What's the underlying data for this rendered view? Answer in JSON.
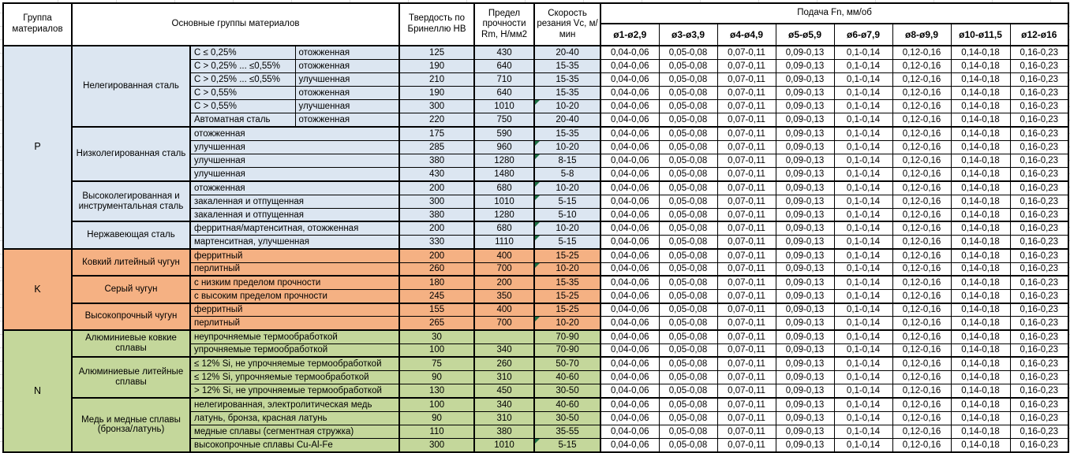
{
  "header": {
    "col_group": "Группа материалов",
    "col_main": "Основные группы материалов",
    "col_hb": "Твердость по Бринеллю НВ",
    "col_rm": "Предел прочности Rm, Н/мм2",
    "col_vc": "Скорость резания Vc, м/мин",
    "feed_title": "Подача Fn, мм/об",
    "feed_cols": [
      "ø1-ø2,9",
      "ø3-ø3,9",
      "ø4-ø4,9",
      "ø5-ø5,9",
      "ø6-ø7,9",
      "ø8-ø9,9",
      "ø10-ø11,5",
      "ø12-ø16"
    ]
  },
  "feed_values": [
    "0,04-0,06",
    "0,05-0,08",
    "0,07-0,11",
    "0,09-0,13",
    "0,1-0,14",
    "0,12-0,16",
    "0,14-0,18",
    "0,16-0,23"
  ],
  "colors": {
    "section_P": "#dce6f1",
    "section_K": "#f5b183",
    "section_N": "#c4d79b",
    "feed_cell_bg": "#ffffff",
    "border": "#000000",
    "note_triangle": "#1e7145"
  },
  "sections": [
    {
      "code": "P",
      "groups": [
        {
          "name": "Нелегированная сталь",
          "rows": [
            {
              "cond": "C ≤ 0,25%",
              "state": "отожженная",
              "hb": "125",
              "rm": "430",
              "vc": "20-40",
              "note": false
            },
            {
              "cond": "C > 0,25% ... ≤0,55%",
              "state": "отожженная",
              "hb": "190",
              "rm": "640",
              "vc": "15-35",
              "note": false
            },
            {
              "cond": "C > 0,25% ... ≤0,55%",
              "state": "улучшенная",
              "hb": "210",
              "rm": "710",
              "vc": "15-35",
              "note": false
            },
            {
              "cond": "C > 0,55%",
              "state": "отожженная",
              "hb": "190",
              "rm": "640",
              "vc": "15-35",
              "note": false
            },
            {
              "cond": "C > 0,55%",
              "state": "улучшенная",
              "hb": "300",
              "rm": "1010",
              "vc": "10-20",
              "note": true
            },
            {
              "cond": "Автоматная сталь",
              "state": "отожженная",
              "hb": "220",
              "rm": "750",
              "vc": "20-40",
              "note": false
            }
          ]
        },
        {
          "name": "Низколегированная сталь",
          "rows": [
            {
              "cond": "отожженная",
              "hb": "175",
              "rm": "590",
              "vc": "15-35",
              "note": false
            },
            {
              "cond": "улучшенная",
              "hb": "285",
              "rm": "960",
              "vc": "10-20",
              "note": true
            },
            {
              "cond": "улучшенная",
              "hb": "380",
              "rm": "1280",
              "vc": "8-15",
              "note": true
            },
            {
              "cond": "улучшенная",
              "hb": "430",
              "rm": "1480",
              "vc": "5-8",
              "note": false
            }
          ]
        },
        {
          "name": "Высоколегированная и инструментальная сталь",
          "rows": [
            {
              "cond": "отожженная",
              "hb": "200",
              "rm": "680",
              "vc": "10-20",
              "note": true
            },
            {
              "cond": "закаленная и отпущенная",
              "hb": "300",
              "rm": "1010",
              "vc": "5-15",
              "note": true
            },
            {
              "cond": "закаленная и отпущенная",
              "hb": "380",
              "rm": "1280",
              "vc": "5-10",
              "note": false
            }
          ]
        },
        {
          "name": "Нержавеющая сталь",
          "rows": [
            {
              "cond": "ферритная/мартенситная, отожженная",
              "hb": "200",
              "rm": "680",
              "vc": "10-20",
              "note": true
            },
            {
              "cond": "мартенситная, улучшенная",
              "hb": "330",
              "rm": "1110",
              "vc": "5-15",
              "note": true
            }
          ]
        }
      ]
    },
    {
      "code": "K",
      "groups": [
        {
          "name": "Ковкий литейный чугун",
          "rows": [
            {
              "cond": "ферритный",
              "hb": "200",
              "rm": "400",
              "vc": "15-25",
              "note": false
            },
            {
              "cond": "перлитный",
              "hb": "260",
              "rm": "700",
              "vc": "10-20",
              "note": true
            }
          ]
        },
        {
          "name": "Серый чугун",
          "rows": [
            {
              "cond": "с низким пределом прочности",
              "hb": "180",
              "rm": "200",
              "vc": "15-35",
              "note": false
            },
            {
              "cond": "с высоким пределом прочности",
              "hb": "245",
              "rm": "350",
              "vc": "15-25",
              "note": false
            }
          ]
        },
        {
          "name": "Высокопрочный чугун",
          "rows": [
            {
              "cond": "ферритный",
              "hb": "155",
              "rm": "400",
              "vc": "15-25",
              "note": false
            },
            {
              "cond": "перлитный",
              "hb": "265",
              "rm": "700",
              "vc": "10-20",
              "note": true
            }
          ]
        }
      ]
    },
    {
      "code": "N",
      "groups": [
        {
          "name": "Алюминиевые ковкие сплавы",
          "rows": [
            {
              "cond": "неупрочняемые термообработкой",
              "hb": "30",
              "rm": "",
              "vc": "70-90",
              "note": false
            },
            {
              "cond": "упрочняемые термообработкой",
              "hb": "100",
              "rm": "340",
              "vc": "70-90",
              "note": false
            }
          ]
        },
        {
          "name": "Алюминиевые литейные сплавы",
          "rows": [
            {
              "cond": "≤ 12% Si, не упрочняемые термообработкой",
              "hb": "75",
              "rm": "260",
              "vc": "50-70",
              "note": false
            },
            {
              "cond": "≤ 12% Si, упрочняемые термообработкой",
              "hb": "90",
              "rm": "310",
              "vc": "40-60",
              "note": false
            },
            {
              "cond": "> 12% Si, не упрочняемые термообработкой",
              "hb": "130",
              "rm": "450",
              "vc": "30-50",
              "note": false
            }
          ]
        },
        {
          "name": "Медь и медные сплавы (бронза/латунь)",
          "rows": [
            {
              "cond": "нелегированная, электролитическая медь",
              "hb": "100",
              "rm": "340",
              "vc": "40-60",
              "note": false
            },
            {
              "cond": "латунь, бронза, красная латунь",
              "hb": "90",
              "rm": "310",
              "vc": "30-50",
              "note": false
            },
            {
              "cond": "медные сплавы (сегментная стружка)",
              "hb": "110",
              "rm": "380",
              "vc": "35-55",
              "note": false
            },
            {
              "cond": "высокопрочные сплавы Cu-Al-Fe",
              "hb": "300",
              "rm": "1010",
              "vc": "5-15",
              "note": true
            }
          ]
        }
      ]
    }
  ]
}
